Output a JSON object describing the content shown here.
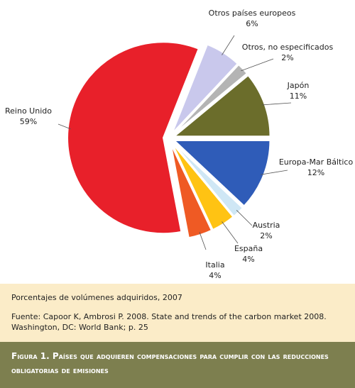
{
  "chart_data": {
    "type": "pie",
    "categories": [
      "Otros países europeos",
      "Otros, no especificados",
      "Japón",
      "Europa-Mar Báltico",
      "Austria",
      "España",
      "Italia",
      "Reino Unido"
    ],
    "values": [
      6,
      2,
      11,
      12,
      2,
      4,
      4,
      59
    ],
    "value_labels": [
      "6%",
      "2%",
      "11%",
      "12%",
      "2%",
      "4%",
      "4%",
      "59%"
    ],
    "colors": [
      "#c9c8ec",
      "#b4b4b4",
      "#6b6d2b",
      "#2f5cb8",
      "#cfe7f5",
      "#ffc313",
      "#ef5a24",
      "#e8202a"
    ]
  },
  "notes": {
    "subtitle": "Porcentajes de volúmenes adquiridos, 2007",
    "source": "Fuente: Capoor K, Ambrosi P. 2008. State and trends of the carbon market 2008. Washington, DC: World Bank; p. 25"
  },
  "caption": {
    "label": "Figura 1.",
    "text": "Países que adquieren compensaciones para cumplir con las reducciones obligatorias de emisiones"
  }
}
